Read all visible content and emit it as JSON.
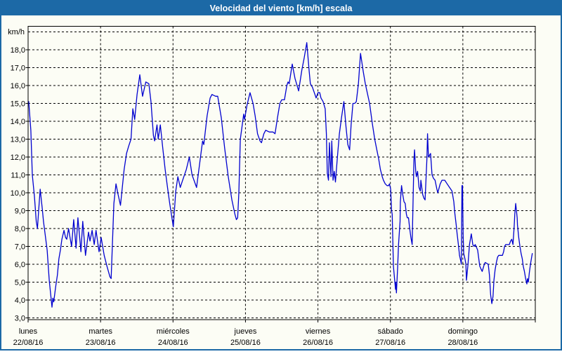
{
  "colors": {
    "frame_blue": "#1c69a6",
    "background": "#fcfdf5",
    "plot_background": "#fdfefa",
    "grid": "#000000",
    "axis_text": "#000000",
    "title_text": "#ffffff",
    "line": "#0000cf"
  },
  "chart_data": {
    "type": "line",
    "title": "Velocidad del viento [km/h] escala",
    "unit_label": "km/h",
    "ylabel": "km/h",
    "ylim": [
      3,
      19
    ],
    "ytick_labels": [
      "3,0",
      "4,0",
      "5,0",
      "6,0",
      "7,0",
      "8,0",
      "9,0",
      "10,0",
      "11,0",
      "12,0",
      "13,0",
      "14,0",
      "15,0",
      "16,0",
      "17,0",
      "18,0"
    ],
    "grid": "dashed",
    "legend": "none",
    "x_range_hours": [
      0,
      168
    ],
    "x_days": [
      {
        "name": "lunes",
        "date": "22/08/16"
      },
      {
        "name": "martes",
        "date": "23/08/16"
      },
      {
        "name": "miércoles",
        "date": "24/08/16"
      },
      {
        "name": "jueves",
        "date": "25/08/16"
      },
      {
        "name": "viernes",
        "date": "26/08/16"
      },
      {
        "name": "sábado",
        "date": "27/08/16"
      },
      {
        "name": "domingo",
        "date": "28/08/16"
      }
    ],
    "series": [
      {
        "name": "Velocidad del viento",
        "color": "#0000cf",
        "points_hours_kmh": [
          [
            0.2,
            15.1
          ],
          [
            0.9,
            13.5
          ],
          [
            1.4,
            11.0
          ],
          [
            2.1,
            9.8
          ],
          [
            2.7,
            8.4
          ],
          [
            3.1,
            8.0
          ],
          [
            3.5,
            9.0
          ],
          [
            4.0,
            10.2
          ],
          [
            4.7,
            9.1
          ],
          [
            5.1,
            8.4
          ],
          [
            6.3,
            6.8
          ],
          [
            7.0,
            5.1
          ],
          [
            7.9,
            3.6
          ],
          [
            8.2,
            4.1
          ],
          [
            8.5,
            3.9
          ],
          [
            9.1,
            4.7
          ],
          [
            9.7,
            5.4
          ],
          [
            10.2,
            6.3
          ],
          [
            10.7,
            6.8
          ],
          [
            11.2,
            7.4
          ],
          [
            11.9,
            7.9
          ],
          [
            12.4,
            7.5
          ],
          [
            12.8,
            7.4
          ],
          [
            13.4,
            8.0
          ],
          [
            13.9,
            7.5
          ],
          [
            14.4,
            7.0
          ],
          [
            15.1,
            8.5
          ],
          [
            15.9,
            6.9
          ],
          [
            16.5,
            8.6
          ],
          [
            17.5,
            6.7
          ],
          [
            18.1,
            8.4
          ],
          [
            19.0,
            6.5
          ],
          [
            20.0,
            7.8
          ],
          [
            20.5,
            7.3
          ],
          [
            21.2,
            7.9
          ],
          [
            21.9,
            7.1
          ],
          [
            22.5,
            7.9
          ],
          [
            23.5,
            6.7
          ],
          [
            24.2,
            7.5
          ],
          [
            25.2,
            6.5
          ],
          [
            26.1,
            5.9
          ],
          [
            27.1,
            5.3
          ],
          [
            27.5,
            5.2
          ],
          [
            27.9,
            7.0
          ],
          [
            28.4,
            9.4
          ],
          [
            29.1,
            10.5
          ],
          [
            29.8,
            9.9
          ],
          [
            30.6,
            9.3
          ],
          [
            31.8,
            11.3
          ],
          [
            32.6,
            12.2
          ],
          [
            33.3,
            12.6
          ],
          [
            34.1,
            13.0
          ],
          [
            34.7,
            14.7
          ],
          [
            35.3,
            14.1
          ],
          [
            36.1,
            15.5
          ],
          [
            37.0,
            16.6
          ],
          [
            37.9,
            15.4
          ],
          [
            39.0,
            16.2
          ],
          [
            40.0,
            16.1
          ],
          [
            40.7,
            15.1
          ],
          [
            41.5,
            13.2
          ],
          [
            41.9,
            12.9
          ],
          [
            42.7,
            13.8
          ],
          [
            43.1,
            13.0
          ],
          [
            43.8,
            13.8
          ],
          [
            44.6,
            12.5
          ],
          [
            45.4,
            11.3
          ],
          [
            46.1,
            10.4
          ],
          [
            46.9,
            9.4
          ],
          [
            48.1,
            8.1
          ],
          [
            48.9,
            10.1
          ],
          [
            49.6,
            10.9
          ],
          [
            50.4,
            10.3
          ],
          [
            51.2,
            10.7
          ],
          [
            52.4,
            11.3
          ],
          [
            53.4,
            12.0
          ],
          [
            54.3,
            11.0
          ],
          [
            55.8,
            10.3
          ],
          [
            56.8,
            11.6
          ],
          [
            57.8,
            12.9
          ],
          [
            58.2,
            12.7
          ],
          [
            59.3,
            14.3
          ],
          [
            60.3,
            15.3
          ],
          [
            60.9,
            15.5
          ],
          [
            62.1,
            15.4
          ],
          [
            62.8,
            15.4
          ],
          [
            64.0,
            14.2
          ],
          [
            65.1,
            12.5
          ],
          [
            66.3,
            10.9
          ],
          [
            67.5,
            9.6
          ],
          [
            68.5,
            8.8
          ],
          [
            69.0,
            8.5
          ],
          [
            69.4,
            8.6
          ],
          [
            69.8,
            10.0
          ],
          [
            70.3,
            13.0
          ],
          [
            71.4,
            14.4
          ],
          [
            71.7,
            14.1
          ],
          [
            72.5,
            14.9
          ],
          [
            73.5,
            15.6
          ],
          [
            74.5,
            15.0
          ],
          [
            75.2,
            14.3
          ],
          [
            76.0,
            13.3
          ],
          [
            76.8,
            12.9
          ],
          [
            77.3,
            12.8
          ],
          [
            78.1,
            13.3
          ],
          [
            78.7,
            13.5
          ],
          [
            79.9,
            13.4
          ],
          [
            81.1,
            13.4
          ],
          [
            81.8,
            13.3
          ],
          [
            82.6,
            14.2
          ],
          [
            83.4,
            15.0
          ],
          [
            84.0,
            15.2
          ],
          [
            84.9,
            15.2
          ],
          [
            85.7,
            16.0
          ],
          [
            86.1,
            16.2
          ],
          [
            86.5,
            16.1
          ],
          [
            87.5,
            17.2
          ],
          [
            88.4,
            16.4
          ],
          [
            89.6,
            15.7
          ],
          [
            90.7,
            16.9
          ],
          [
            91.4,
            17.5
          ],
          [
            92.3,
            18.4
          ],
          [
            93.1,
            16.8
          ],
          [
            93.5,
            16.1
          ],
          [
            94.2,
            15.9
          ],
          [
            95.0,
            15.5
          ],
          [
            95.4,
            15.3
          ],
          [
            96.0,
            15.6
          ],
          [
            96.6,
            15.6
          ],
          [
            97.0,
            15.3
          ],
          [
            97.7,
            15.1
          ],
          [
            98.4,
            14.7
          ],
          [
            98.8,
            13.3
          ],
          [
            99.1,
            11.1
          ],
          [
            99.5,
            10.7
          ],
          [
            99.8,
            12.8
          ],
          [
            100.3,
            10.9
          ],
          [
            100.6,
            12.9
          ],
          [
            101.0,
            10.7
          ],
          [
            101.4,
            11.2
          ],
          [
            101.8,
            10.6
          ],
          [
            102.4,
            11.9
          ],
          [
            103.1,
            13.3
          ],
          [
            103.8,
            14.2
          ],
          [
            104.6,
            15.1
          ],
          [
            105.3,
            13.7
          ],
          [
            105.9,
            12.7
          ],
          [
            106.5,
            12.4
          ],
          [
            107.0,
            13.8
          ],
          [
            107.6,
            15.0
          ],
          [
            108.2,
            15.0
          ],
          [
            108.7,
            15.1
          ],
          [
            109.4,
            16.1
          ],
          [
            110.1,
            17.8
          ],
          [
            111.0,
            16.8
          ],
          [
            111.7,
            16.1
          ],
          [
            113.1,
            15.0
          ],
          [
            114.0,
            13.9
          ],
          [
            114.8,
            13.0
          ],
          [
            115.4,
            12.5
          ],
          [
            116.1,
            11.9
          ],
          [
            116.7,
            11.3
          ],
          [
            117.3,
            10.9
          ],
          [
            117.7,
            10.7
          ],
          [
            118.3,
            10.5
          ],
          [
            118.9,
            10.4
          ],
          [
            119.4,
            10.4
          ],
          [
            119.7,
            10.5
          ],
          [
            120.1,
            10.2
          ],
          [
            120.4,
            9.0
          ],
          [
            120.6,
            8.8
          ],
          [
            121.0,
            5.9
          ],
          [
            121.7,
            4.6
          ],
          [
            121.8,
            5.0
          ],
          [
            122.0,
            4.4
          ],
          [
            122.4,
            5.8
          ],
          [
            122.7,
            7.1
          ],
          [
            123.2,
            8.4
          ],
          [
            123.3,
            9.5
          ],
          [
            123.7,
            10.4
          ],
          [
            124.1,
            9.9
          ],
          [
            124.5,
            9.5
          ],
          [
            124.9,
            9.4
          ],
          [
            125.3,
            8.8
          ],
          [
            125.6,
            8.6
          ],
          [
            126.0,
            8.6
          ],
          [
            126.4,
            8.0
          ],
          [
            126.8,
            7.5
          ],
          [
            127.2,
            7.1
          ],
          [
            127.8,
            11.8
          ],
          [
            128.0,
            12.4
          ],
          [
            128.4,
            11.2
          ],
          [
            128.6,
            10.9
          ],
          [
            129.0,
            11.2
          ],
          [
            129.5,
            10.3
          ],
          [
            129.9,
            10.1
          ],
          [
            130.1,
            10.7
          ],
          [
            130.7,
            9.9
          ],
          [
            131.1,
            9.7
          ],
          [
            131.5,
            9.6
          ],
          [
            132.1,
            11.9
          ],
          [
            132.3,
            13.3
          ],
          [
            132.6,
            12.0
          ],
          [
            133.3,
            12.2
          ],
          [
            133.8,
            11.0
          ],
          [
            134.3,
            10.8
          ],
          [
            134.8,
            10.7
          ],
          [
            135.4,
            10.2
          ],
          [
            135.7,
            10.0
          ],
          [
            136.5,
            10.5
          ],
          [
            137.1,
            10.7
          ],
          [
            137.7,
            10.7
          ],
          [
            138.0,
            10.7
          ],
          [
            138.8,
            10.5
          ],
          [
            139.6,
            10.3
          ],
          [
            140.4,
            10.1
          ],
          [
            141.0,
            9.5
          ],
          [
            141.3,
            8.9
          ],
          [
            141.8,
            8.2
          ],
          [
            142.1,
            7.7
          ],
          [
            142.6,
            7.0
          ],
          [
            142.9,
            6.5
          ],
          [
            143.4,
            6.1
          ],
          [
            143.5,
            6.0
          ],
          [
            143.7,
            10.4
          ],
          [
            143.8,
            9.1
          ],
          [
            143.9,
            10.4
          ],
          [
            144.1,
            7.6
          ],
          [
            144.3,
            6.6
          ],
          [
            144.7,
            6.3
          ],
          [
            145.0,
            6.0
          ],
          [
            145.2,
            5.1
          ],
          [
            145.7,
            6.0
          ],
          [
            146.2,
            7.1
          ],
          [
            146.8,
            7.7
          ],
          [
            147.3,
            7.1
          ],
          [
            147.7,
            7.0
          ],
          [
            148.1,
            7.1
          ],
          [
            148.9,
            6.8
          ],
          [
            149.6,
            5.9
          ],
          [
            150.1,
            5.7
          ],
          [
            150.4,
            5.6
          ],
          [
            151.1,
            6.0
          ],
          [
            151.4,
            6.1
          ],
          [
            152.4,
            6.0
          ],
          [
            152.8,
            5.4
          ],
          [
            153.2,
            4.3
          ],
          [
            153.6,
            3.8
          ],
          [
            154.0,
            4.2
          ],
          [
            154.3,
            5.1
          ],
          [
            154.7,
            5.7
          ],
          [
            155.1,
            6.1
          ],
          [
            155.5,
            6.4
          ],
          [
            155.9,
            6.5
          ],
          [
            156.7,
            6.5
          ],
          [
            157.1,
            6.5
          ],
          [
            157.5,
            6.7
          ],
          [
            157.8,
            7.0
          ],
          [
            158.2,
            7.1
          ],
          [
            159.0,
            7.1
          ],
          [
            159.4,
            7.1
          ],
          [
            159.8,
            7.3
          ],
          [
            160.2,
            7.4
          ],
          [
            160.6,
            7.1
          ],
          [
            161.0,
            8.1
          ],
          [
            161.2,
            8.8
          ],
          [
            161.5,
            9.4
          ],
          [
            162.0,
            8.6
          ],
          [
            162.1,
            8.2
          ],
          [
            162.5,
            7.5
          ],
          [
            162.9,
            7.0
          ],
          [
            163.3,
            6.6
          ],
          [
            163.7,
            6.3
          ],
          [
            164.0,
            5.9
          ],
          [
            164.4,
            5.6
          ],
          [
            164.8,
            5.2
          ],
          [
            165.2,
            4.9
          ],
          [
            165.4,
            5.2
          ],
          [
            165.7,
            5.0
          ],
          [
            166.0,
            5.5
          ],
          [
            166.4,
            6.0
          ],
          [
            166.8,
            6.4
          ],
          [
            167.0,
            6.6
          ]
        ]
      }
    ]
  }
}
